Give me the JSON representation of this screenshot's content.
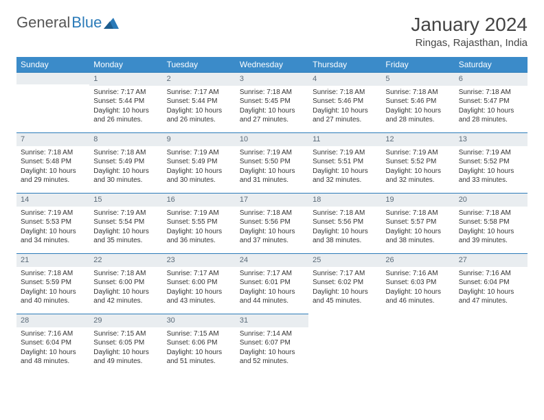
{
  "logo": {
    "text1": "General",
    "text2": "Blue"
  },
  "title": "January 2024",
  "location": "Ringas, Rajasthan, India",
  "colors": {
    "header_bg": "#3b8bc9",
    "header_text": "#ffffff",
    "daynum_bg": "#e9edf0",
    "daynum_text": "#5a6a78",
    "rule": "#2a7ab8"
  },
  "weekdays": [
    "Sunday",
    "Monday",
    "Tuesday",
    "Wednesday",
    "Thursday",
    "Friday",
    "Saturday"
  ],
  "weeks": [
    [
      {
        "n": "",
        "lines": []
      },
      {
        "n": "1",
        "lines": [
          "Sunrise: 7:17 AM",
          "Sunset: 5:44 PM",
          "Daylight: 10 hours",
          "and 26 minutes."
        ]
      },
      {
        "n": "2",
        "lines": [
          "Sunrise: 7:17 AM",
          "Sunset: 5:44 PM",
          "Daylight: 10 hours",
          "and 26 minutes."
        ]
      },
      {
        "n": "3",
        "lines": [
          "Sunrise: 7:18 AM",
          "Sunset: 5:45 PM",
          "Daylight: 10 hours",
          "and 27 minutes."
        ]
      },
      {
        "n": "4",
        "lines": [
          "Sunrise: 7:18 AM",
          "Sunset: 5:46 PM",
          "Daylight: 10 hours",
          "and 27 minutes."
        ]
      },
      {
        "n": "5",
        "lines": [
          "Sunrise: 7:18 AM",
          "Sunset: 5:46 PM",
          "Daylight: 10 hours",
          "and 28 minutes."
        ]
      },
      {
        "n": "6",
        "lines": [
          "Sunrise: 7:18 AM",
          "Sunset: 5:47 PM",
          "Daylight: 10 hours",
          "and 28 minutes."
        ]
      }
    ],
    [
      {
        "n": "7",
        "lines": [
          "Sunrise: 7:18 AM",
          "Sunset: 5:48 PM",
          "Daylight: 10 hours",
          "and 29 minutes."
        ]
      },
      {
        "n": "8",
        "lines": [
          "Sunrise: 7:18 AM",
          "Sunset: 5:49 PM",
          "Daylight: 10 hours",
          "and 30 minutes."
        ]
      },
      {
        "n": "9",
        "lines": [
          "Sunrise: 7:19 AM",
          "Sunset: 5:49 PM",
          "Daylight: 10 hours",
          "and 30 minutes."
        ]
      },
      {
        "n": "10",
        "lines": [
          "Sunrise: 7:19 AM",
          "Sunset: 5:50 PM",
          "Daylight: 10 hours",
          "and 31 minutes."
        ]
      },
      {
        "n": "11",
        "lines": [
          "Sunrise: 7:19 AM",
          "Sunset: 5:51 PM",
          "Daylight: 10 hours",
          "and 32 minutes."
        ]
      },
      {
        "n": "12",
        "lines": [
          "Sunrise: 7:19 AM",
          "Sunset: 5:52 PM",
          "Daylight: 10 hours",
          "and 32 minutes."
        ]
      },
      {
        "n": "13",
        "lines": [
          "Sunrise: 7:19 AM",
          "Sunset: 5:52 PM",
          "Daylight: 10 hours",
          "and 33 minutes."
        ]
      }
    ],
    [
      {
        "n": "14",
        "lines": [
          "Sunrise: 7:19 AM",
          "Sunset: 5:53 PM",
          "Daylight: 10 hours",
          "and 34 minutes."
        ]
      },
      {
        "n": "15",
        "lines": [
          "Sunrise: 7:19 AM",
          "Sunset: 5:54 PM",
          "Daylight: 10 hours",
          "and 35 minutes."
        ]
      },
      {
        "n": "16",
        "lines": [
          "Sunrise: 7:19 AM",
          "Sunset: 5:55 PM",
          "Daylight: 10 hours",
          "and 36 minutes."
        ]
      },
      {
        "n": "17",
        "lines": [
          "Sunrise: 7:18 AM",
          "Sunset: 5:56 PM",
          "Daylight: 10 hours",
          "and 37 minutes."
        ]
      },
      {
        "n": "18",
        "lines": [
          "Sunrise: 7:18 AM",
          "Sunset: 5:56 PM",
          "Daylight: 10 hours",
          "and 38 minutes."
        ]
      },
      {
        "n": "19",
        "lines": [
          "Sunrise: 7:18 AM",
          "Sunset: 5:57 PM",
          "Daylight: 10 hours",
          "and 38 minutes."
        ]
      },
      {
        "n": "20",
        "lines": [
          "Sunrise: 7:18 AM",
          "Sunset: 5:58 PM",
          "Daylight: 10 hours",
          "and 39 minutes."
        ]
      }
    ],
    [
      {
        "n": "21",
        "lines": [
          "Sunrise: 7:18 AM",
          "Sunset: 5:59 PM",
          "Daylight: 10 hours",
          "and 40 minutes."
        ]
      },
      {
        "n": "22",
        "lines": [
          "Sunrise: 7:18 AM",
          "Sunset: 6:00 PM",
          "Daylight: 10 hours",
          "and 42 minutes."
        ]
      },
      {
        "n": "23",
        "lines": [
          "Sunrise: 7:17 AM",
          "Sunset: 6:00 PM",
          "Daylight: 10 hours",
          "and 43 minutes."
        ]
      },
      {
        "n": "24",
        "lines": [
          "Sunrise: 7:17 AM",
          "Sunset: 6:01 PM",
          "Daylight: 10 hours",
          "and 44 minutes."
        ]
      },
      {
        "n": "25",
        "lines": [
          "Sunrise: 7:17 AM",
          "Sunset: 6:02 PM",
          "Daylight: 10 hours",
          "and 45 minutes."
        ]
      },
      {
        "n": "26",
        "lines": [
          "Sunrise: 7:16 AM",
          "Sunset: 6:03 PM",
          "Daylight: 10 hours",
          "and 46 minutes."
        ]
      },
      {
        "n": "27",
        "lines": [
          "Sunrise: 7:16 AM",
          "Sunset: 6:04 PM",
          "Daylight: 10 hours",
          "and 47 minutes."
        ]
      }
    ],
    [
      {
        "n": "28",
        "lines": [
          "Sunrise: 7:16 AM",
          "Sunset: 6:04 PM",
          "Daylight: 10 hours",
          "and 48 minutes."
        ]
      },
      {
        "n": "29",
        "lines": [
          "Sunrise: 7:15 AM",
          "Sunset: 6:05 PM",
          "Daylight: 10 hours",
          "and 49 minutes."
        ]
      },
      {
        "n": "30",
        "lines": [
          "Sunrise: 7:15 AM",
          "Sunset: 6:06 PM",
          "Daylight: 10 hours",
          "and 51 minutes."
        ]
      },
      {
        "n": "31",
        "lines": [
          "Sunrise: 7:14 AM",
          "Sunset: 6:07 PM",
          "Daylight: 10 hours",
          "and 52 minutes."
        ]
      },
      {
        "n": "",
        "lines": []
      },
      {
        "n": "",
        "lines": []
      },
      {
        "n": "",
        "lines": []
      }
    ]
  ]
}
